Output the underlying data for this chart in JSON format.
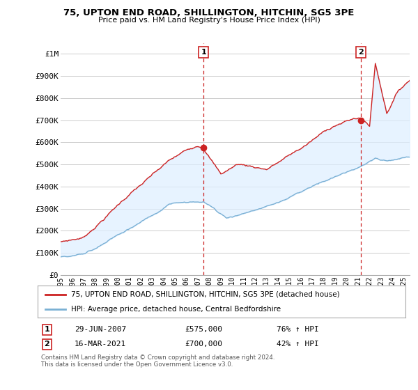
{
  "title": "75, UPTON END ROAD, SHILLINGTON, HITCHIN, SG5 3PE",
  "subtitle": "Price paid vs. HM Land Registry's House Price Index (HPI)",
  "ylabel_ticks": [
    "£0",
    "£100K",
    "£200K",
    "£300K",
    "£400K",
    "£500K",
    "£600K",
    "£700K",
    "£800K",
    "£900K",
    "£1M"
  ],
  "ytick_values": [
    0,
    100000,
    200000,
    300000,
    400000,
    500000,
    600000,
    700000,
    800000,
    900000,
    1000000
  ],
  "ylim": [
    0,
    1050000
  ],
  "xlim_start": 1995.0,
  "xlim_end": 2025.5,
  "transaction1": {
    "date_x": 2007.49,
    "price": 575000,
    "label": "1",
    "date_str": "29-JUN-2007",
    "pct": "76% ↑ HPI"
  },
  "transaction2": {
    "date_x": 2021.21,
    "price": 700000,
    "label": "2",
    "date_str": "16-MAR-2021",
    "pct": "42% ↑ HPI"
  },
  "legend_line1": "75, UPTON END ROAD, SHILLINGTON, HITCHIN, SG5 3PE (detached house)",
  "legend_line2": "HPI: Average price, detached house, Central Bedfordshire",
  "footnote": "Contains HM Land Registry data © Crown copyright and database right 2024.\nThis data is licensed under the Open Government Licence v3.0.",
  "line_color_red": "#cc2222",
  "line_color_blue": "#7ab0d4",
  "fill_color_blue": "#ddeeff",
  "background_color": "#ffffff",
  "grid_color": "#cccccc"
}
